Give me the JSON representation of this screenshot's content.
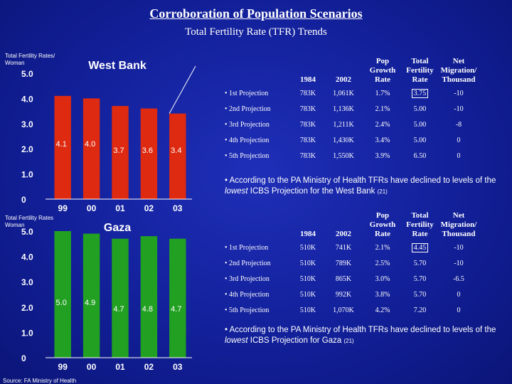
{
  "title": "Corroboration of Population Scenarios",
  "subtitle": "Total Fertility Rate (TFR) Trends",
  "source": "Source: FA Ministry of Health",
  "chart_data": [
    {
      "type": "bar",
      "title": "West Bank",
      "ylabel": "Total Fertility Rates/ Woman",
      "categories": [
        "99",
        "00",
        "01",
        "02",
        "03"
      ],
      "values": [
        4.1,
        4.0,
        3.7,
        3.6,
        3.4
      ],
      "data_labels": [
        "4.1",
        "4.0",
        "3.7",
        "3.6",
        "3.4"
      ],
      "ylim": [
        0,
        5.0
      ],
      "yticks": [
        "0",
        "1.0",
        "2.0",
        "3.0",
        "4.0",
        "5.0"
      ],
      "bar_color": "#dd2a10",
      "trend_line": true
    },
    {
      "type": "bar",
      "title": "Gaza",
      "ylabel": "Total Fertility Rates Woman",
      "categories": [
        "99",
        "00",
        "01",
        "02",
        "03"
      ],
      "values": [
        5.0,
        4.9,
        4.7,
        4.8,
        4.7
      ],
      "data_labels": [
        "5.0",
        "4.9",
        "4.7",
        "4.8",
        "4.7"
      ],
      "ylim": [
        0,
        5.0
      ],
      "yticks": [
        "0",
        "1.0",
        "2.0",
        "3.0",
        "4.0",
        "5.0"
      ],
      "bar_color": "#22a022",
      "trend_line": false
    }
  ],
  "tables": {
    "west_bank": {
      "headers": {
        "y1984": "1984",
        "y2002": "2002",
        "pop": "Pop Growth Rate",
        "tfr": "Total Fertility Rate",
        "net": "Net Migration/ Thousand"
      },
      "rows": [
        {
          "label": "• 1st Projection",
          "y1984": "783K",
          "y2002": "1,061K",
          "pop": "1.7%",
          "tfr": "3.75",
          "net": "-10"
        },
        {
          "label": "• 2nd Projection",
          "y1984": "783K",
          "y2002": "1,136K",
          "pop": "2.1%",
          "tfr": "5.00",
          "net": "-10"
        },
        {
          "label": "• 3rd Projection",
          "y1984": "783K",
          "y2002": "1,211K",
          "pop": "2.4%",
          "tfr": "5.00",
          "net": "-8"
        },
        {
          "label": "• 4th Projection",
          "y1984": "783K",
          "y2002": "1,430K",
          "pop": "3.4%",
          "tfr": "5.00",
          "net": "0"
        },
        {
          "label": "• 5th Projection",
          "y1984": "783K",
          "y2002": "1,550K",
          "pop": "3.9%",
          "tfr": "6.50",
          "net": "0"
        }
      ],
      "note_a": "• According to the PA Ministry of Health TFRs have declined to levels of the ",
      "note_em": "lowest",
      "note_b": " ICBS Projection for the West Bank",
      "note_ref": "(21)"
    },
    "gaza": {
      "headers": {
        "y1984": "1984",
        "y2002": "2002",
        "pop": "Pop Growth Rate",
        "tfr": "Total Fertility Rate",
        "net": "Net Migration/ Thousand"
      },
      "rows": [
        {
          "label": "• 1st Projection",
          "y1984": "510K",
          "y2002": "741K",
          "pop": "2.1%",
          "tfr": "4.45",
          "net": "-10"
        },
        {
          "label": "• 2nd Projection",
          "y1984": "510K",
          "y2002": "789K",
          "pop": "2.5%",
          "tfr": "5.70",
          "net": "-10"
        },
        {
          "label": "• 3rd Projection",
          "y1984": "510K",
          "y2002": "865K",
          "pop": "3.0%",
          "tfr": "5.70",
          "net": "-6.5"
        },
        {
          "label": "• 4th Projection",
          "y1984": "510K",
          "y2002": "992K",
          "pop": "3.8%",
          "tfr": "5.70",
          "net": "0"
        },
        {
          "label": "• 5th Projection",
          "y1984": "510K",
          "y2002": "1,070K",
          "pop": "4.2%",
          "tfr": "7.20",
          "net": "0"
        }
      ],
      "note_a": "• According to the PA Ministry of Health TFRs have declined to levels of the ",
      "note_em": "lowest",
      "note_b": " ICBS Projection for Gaza",
      "note_ref": "(21)"
    }
  }
}
